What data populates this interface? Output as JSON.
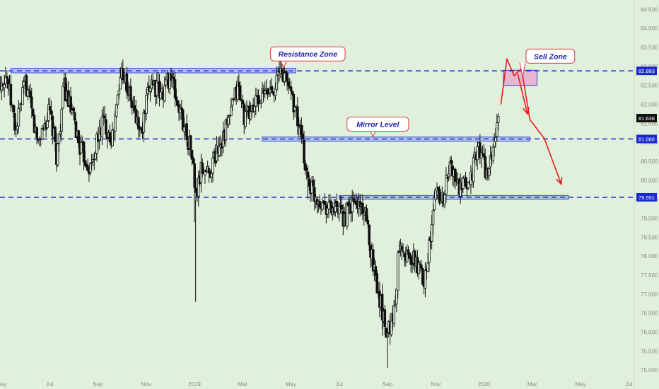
{
  "chart_data": {
    "type": "candlestick",
    "title": "",
    "xlabel": "",
    "ylabel": "",
    "ylim": [
      74.5,
      84.75
    ],
    "grid": false,
    "y_ticks": [
      "75.000",
      "75.500",
      "76.000",
      "76.500",
      "77.000",
      "77.500",
      "78.000",
      "78.500",
      "79.000",
      "79.500",
      "80.000",
      "80.500",
      "81.000",
      "81.500",
      "82.000",
      "82.500",
      "83.000",
      "83.500",
      "84.000",
      "84.500"
    ],
    "x_ticks": [
      {
        "label": "May",
        "t": 0
      },
      {
        "label": "Jul",
        "t": 2
      },
      {
        "label": "Sep",
        "t": 4
      },
      {
        "label": "Nov",
        "t": 6
      },
      {
        "label": "2019",
        "t": 8
      },
      {
        "label": "Mar",
        "t": 10
      },
      {
        "label": "May",
        "t": 12
      },
      {
        "label": "Jul",
        "t": 14
      },
      {
        "label": "Sep",
        "t": 16
      },
      {
        "label": "Nov",
        "t": 18
      },
      {
        "label": "2020",
        "t": 20
      },
      {
        "label": "Mar",
        "t": 22
      },
      {
        "label": "May",
        "t": 24
      },
      {
        "label": "Jul",
        "t": 26
      }
    ],
    "price_path": [
      [
        -0.2,
        82.5
      ],
      [
        0.2,
        82.8
      ],
      [
        0.6,
        81.3
      ],
      [
        1.0,
        82.6
      ],
      [
        1.5,
        81.0
      ],
      [
        2.0,
        81.8
      ],
      [
        2.3,
        80.6
      ],
      [
        2.6,
        82.5
      ],
      [
        3.3,
        80.8
      ],
      [
        3.7,
        80.3
      ],
      [
        4.2,
        81.6
      ],
      [
        4.6,
        81.1
      ],
      [
        5.0,
        83.0
      ],
      [
        5.4,
        82.0
      ],
      [
        5.8,
        81.2
      ],
      [
        6.2,
        82.7
      ],
      [
        6.6,
        82.2
      ],
      [
        7.0,
        82.8
      ],
      [
        7.3,
        82.0
      ],
      [
        7.6,
        81.4
      ],
      [
        7.9,
        80.7
      ],
      [
        8.05,
        79.5
      ],
      [
        8.3,
        80.3
      ],
      [
        8.6,
        80.2
      ],
      [
        9.0,
        80.9
      ],
      [
        9.4,
        81.5
      ],
      [
        9.8,
        82.5
      ],
      [
        10.1,
        81.6
      ],
      [
        10.5,
        82.0
      ],
      [
        11.0,
        82.3
      ],
      [
        11.3,
        82.5
      ],
      [
        11.6,
        82.9
      ],
      [
        12.0,
        82.4
      ],
      [
        12.4,
        81.2
      ],
      [
        12.7,
        80.0
      ],
      [
        13.0,
        79.6
      ],
      [
        13.4,
        79.4
      ],
      [
        13.8,
        79.2
      ],
      [
        14.2,
        79.0
      ],
      [
        14.6,
        79.4
      ],
      [
        15.0,
        79.3
      ],
      [
        15.5,
        77.5
      ],
      [
        15.8,
        76.5
      ],
      [
        16.0,
        76.0
      ],
      [
        16.3,
        76.6
      ],
      [
        16.5,
        78.5
      ],
      [
        16.8,
        78.0
      ],
      [
        17.2,
        77.8
      ],
      [
        17.5,
        77.4
      ],
      [
        17.8,
        78.5
      ],
      [
        18.0,
        79.8
      ],
      [
        18.3,
        79.5
      ],
      [
        18.6,
        80.4
      ],
      [
        19.0,
        79.7
      ],
      [
        19.4,
        80.0
      ],
      [
        19.8,
        80.9
      ],
      [
        20.0,
        80.4
      ],
      [
        20.2,
        80.1
      ],
      [
        20.4,
        81.0
      ],
      [
        20.6,
        81.5
      ]
    ],
    "wick_spikes": [
      {
        "t": 8.05,
        "low": 76.8
      },
      {
        "t": 16.0,
        "low": 75.05
      },
      {
        "t": 15.8,
        "low": 75.9
      },
      {
        "t": 8.0,
        "low": 78.9
      },
      {
        "t": 12.7,
        "low": 79.5
      }
    ],
    "horizontal_levels": [
      {
        "price": 82.883,
        "label": "82.883",
        "color": "#2a3bd0"
      },
      {
        "price": 81.089,
        "label": "81.089",
        "color": "#2a3bd0"
      },
      {
        "price": 79.551,
        "label": "79.551",
        "color": "#2a3bd0"
      }
    ],
    "last_price": {
      "price": 81.638,
      "label": "81.638"
    },
    "zones": [
      {
        "name": "resistance",
        "t0": 0.4,
        "t1": 12.2,
        "y0": 82.83,
        "y1": 82.95
      },
      {
        "name": "mirror",
        "t0": 10.8,
        "t1": 21.9,
        "y0": 81.03,
        "y1": 81.14
      },
      {
        "name": "support",
        "t0": 14.0,
        "t1": 23.5,
        "y0": 79.5,
        "y1": 79.6
      },
      {
        "name": "sell",
        "t0": 20.8,
        "t1": 22.2,
        "y0": 82.5,
        "y1": 82.9
      }
    ],
    "annotations": [
      {
        "text": "Resistance Zone",
        "t": 12.7,
        "price": 83.33,
        "pointer_t": 11.7,
        "pointer_price": 82.95
      },
      {
        "text": "Mirror Level",
        "t": 15.6,
        "price": 81.48,
        "pointer_t": 15.4,
        "pointer_price": 81.14
      },
      {
        "text": "Sell Zone",
        "t": 22.75,
        "price": 83.27,
        "pointer_t": 21.6,
        "pointer_price": 82.72
      }
    ],
    "projection": [
      [
        20.7,
        82.0
      ],
      [
        20.95,
        83.2
      ],
      [
        21.25,
        82.75
      ],
      [
        21.55,
        82.95
      ],
      [
        21.9,
        81.6
      ],
      [
        22.5,
        81.1
      ],
      [
        23.2,
        79.9
      ]
    ],
    "projection_arrow": [
      [
        21.4,
        82.8
      ],
      [
        21.8,
        81.75
      ]
    ]
  }
}
